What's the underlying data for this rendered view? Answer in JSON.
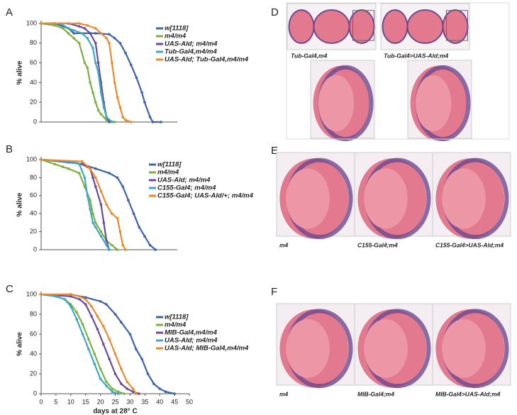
{
  "chart_data": [
    {
      "type": "line",
      "panel": "A",
      "ylabel": "% alive",
      "xlim": [
        0,
        50
      ],
      "ylim": [
        0,
        100
      ],
      "yticks": [
        0,
        20,
        40,
        60,
        80,
        100
      ],
      "series": [
        {
          "name": "w[1118]",
          "color": "#3d63a8",
          "x": [
            0,
            5,
            10,
            12,
            20,
            25,
            27,
            29,
            31,
            33,
            35,
            37,
            38,
            40,
            41,
            44
          ],
          "values": [
            100,
            100,
            95,
            90,
            90,
            89,
            85,
            80,
            70,
            58,
            45,
            30,
            20,
            5,
            0,
            0
          ]
        },
        {
          "name": "m4/m4",
          "color": "#7db044",
          "x": [
            0,
            5,
            8,
            10,
            12,
            14,
            16,
            17,
            18,
            19,
            20,
            21,
            22,
            24,
            27
          ],
          "values": [
            100,
            98,
            95,
            90,
            85,
            80,
            60,
            55,
            40,
            30,
            20,
            12,
            8,
            2,
            0
          ]
        },
        {
          "name": "UAS-Ald; m4/m4",
          "color": "#6c4a9b",
          "x": [
            0,
            10,
            14,
            16,
            18,
            20,
            21,
            22,
            23,
            24,
            25
          ],
          "values": [
            100,
            100,
            97,
            95,
            90,
            80,
            60,
            40,
            20,
            5,
            0
          ]
        },
        {
          "name": "Tub-Gal4,m4/m4",
          "color": "#3fa8c0",
          "x": [
            0,
            7,
            10,
            12,
            15,
            17,
            19,
            20,
            21,
            22,
            23,
            24,
            26
          ],
          "values": [
            100,
            100,
            95,
            93,
            90,
            85,
            75,
            60,
            50,
            30,
            15,
            5,
            0
          ]
        },
        {
          "name": "UAS-Ald; Tub-Gal4,m4/m4",
          "color": "#e98a2e",
          "x": [
            0,
            14,
            17,
            20,
            22,
            24,
            25,
            26,
            27,
            28,
            29,
            30,
            31,
            33
          ],
          "values": [
            100,
            100,
            98,
            95,
            90,
            85,
            80,
            60,
            40,
            25,
            15,
            5,
            2,
            0
          ]
        }
      ]
    },
    {
      "type": "line",
      "panel": "B",
      "ylabel": "% alive",
      "xlim": [
        0,
        50
      ],
      "ylim": [
        0,
        100
      ],
      "yticks": [
        0,
        20,
        40,
        60,
        80,
        100
      ],
      "series": [
        {
          "name": "w[1118]",
          "color": "#3d63a8",
          "x": [
            0,
            10,
            15,
            20,
            25,
            28,
            30,
            32,
            34,
            36,
            38,
            40,
            42
          ],
          "values": [
            100,
            97,
            95,
            90,
            85,
            80,
            70,
            55,
            40,
            25,
            15,
            5,
            0
          ]
        },
        {
          "name": "m4/m4",
          "color": "#7db044",
          "x": [
            0,
            5,
            8,
            10,
            14,
            16,
            18,
            19,
            20,
            22,
            24,
            26,
            28
          ],
          "values": [
            100,
            95,
            92,
            90,
            85,
            70,
            55,
            40,
            30,
            20,
            10,
            5,
            0
          ]
        },
        {
          "name": "UAS-Ald; m4/m4",
          "color": "#6c4a9b",
          "x": [
            0,
            10,
            15,
            18,
            19,
            20,
            22,
            23,
            24,
            25
          ],
          "values": [
            100,
            98,
            95,
            90,
            80,
            70,
            50,
            30,
            10,
            0
          ]
        },
        {
          "name": "C155-Gal4; m4/m4",
          "color": "#3fa8c0",
          "x": [
            0,
            10,
            14,
            16,
            17,
            18,
            19,
            20,
            22,
            24,
            25
          ],
          "values": [
            100,
            98,
            95,
            80,
            60,
            45,
            30,
            25,
            15,
            5,
            0
          ]
        },
        {
          "name": "C155-Gal4; UAS-Ald/+; m4/m4",
          "color": "#e98a2e",
          "x": [
            0,
            15,
            18,
            20,
            22,
            24,
            26,
            28,
            29,
            30,
            31
          ],
          "values": [
            100,
            98,
            90,
            80,
            65,
            50,
            40,
            35,
            20,
            5,
            0
          ]
        }
      ]
    },
    {
      "type": "line",
      "panel": "C",
      "ylabel": "% alive",
      "xlabel": "days at 28° C",
      "xlim": [
        0,
        50
      ],
      "ylim": [
        0,
        100
      ],
      "xticks": [
        0,
        5,
        10,
        15,
        20,
        25,
        30,
        35,
        40,
        45,
        50
      ],
      "yticks": [
        0,
        20,
        40,
        60,
        80,
        100
      ],
      "series": [
        {
          "name": "w[1118]",
          "color": "#3d63a8",
          "x": [
            0,
            10,
            15,
            20,
            22,
            25,
            27,
            30,
            32,
            34,
            36,
            38,
            40,
            42,
            45
          ],
          "values": [
            100,
            100,
            97,
            93,
            90,
            80,
            72,
            60,
            45,
            35,
            20,
            10,
            5,
            2,
            0
          ]
        },
        {
          "name": "m4/m4",
          "color": "#7db044",
          "x": [
            0,
            5,
            8,
            10,
            12,
            14,
            16,
            18,
            20,
            22,
            24,
            26,
            28
          ],
          "values": [
            100,
            98,
            95,
            90,
            82,
            70,
            55,
            40,
            25,
            12,
            5,
            2,
            0
          ]
        },
        {
          "name": "MIB-Gal4,m4/m4",
          "color": "#6c4a9b",
          "x": [
            0,
            10,
            13,
            15,
            17,
            19,
            21,
            23,
            25,
            27,
            29,
            31,
            33
          ],
          "values": [
            100,
            98,
            95,
            90,
            78,
            65,
            50,
            35,
            20,
            10,
            5,
            2,
            0
          ]
        },
        {
          "name": "UAS-Ald; m4/m4",
          "color": "#3fa8c0",
          "x": [
            0,
            5,
            8,
            10,
            12,
            14,
            16,
            18,
            20,
            22,
            24,
            26
          ],
          "values": [
            100,
            98,
            95,
            88,
            75,
            60,
            45,
            30,
            15,
            8,
            2,
            0
          ]
        },
        {
          "name": "UAS-Ald; MIB-Gal4,m4/m4",
          "color": "#e98a2e",
          "x": [
            0,
            10,
            13,
            15,
            17,
            19,
            21,
            23,
            25,
            27,
            29,
            31,
            32
          ],
          "values": [
            100,
            100,
            98,
            95,
            88,
            78,
            68,
            55,
            40,
            25,
            12,
            5,
            0
          ]
        }
      ]
    }
  ],
  "images": [
    {
      "panel": "D",
      "captions": [
        "Tub-Gal4,m4",
        "Tub-Gal4>UAS-Ald;m4"
      ]
    },
    {
      "panel": "E",
      "captions": [
        "m4",
        "C155-Gal4;m4",
        "C155-Gal4>UAS-Ald;m4"
      ]
    },
    {
      "panel": "F",
      "captions": [
        "m4",
        "MIB-Gal4;m4",
        "MIB-Gal4>UAS-Ald;m4"
      ]
    }
  ]
}
